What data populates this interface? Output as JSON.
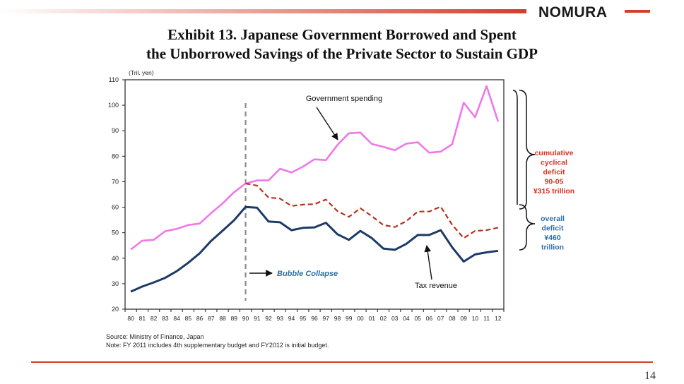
{
  "header": {
    "logo_text": "NOMURA",
    "title_line1": "Exhibit 13.  Japanese Government Borrowed and Spent",
    "title_line2": "the Unborrowed Savings of the Private Sector to Sustain GDP"
  },
  "footer": {
    "source": "Source: Ministry of Finance, Japan",
    "note": "Note: FY 2011 includes 4th supplementary budget and FY2012 is initial budget.",
    "page_number": "14"
  },
  "colors": {
    "accent": "#d33e2a",
    "government_spending": "#ef78e6",
    "tax_revenue": "#1b3a66",
    "cyclical_deficit_line": "#b5331f",
    "cyclical_deficit_text": "#d8321f",
    "overall_deficit_text": "#2e6ea8",
    "bubble_text": "#2e6ea8"
  },
  "chart_data": {
    "type": "line",
    "ylabel": "(Tril. yen)",
    "ylim": [
      20,
      110
    ],
    "yticks": [
      20,
      30,
      40,
      50,
      60,
      70,
      80,
      90,
      100,
      110
    ],
    "x": [
      "80",
      "81",
      "82",
      "83",
      "84",
      "85",
      "86",
      "87",
      "88",
      "89",
      "90",
      "91",
      "92",
      "93",
      "94",
      "95",
      "96",
      "97",
      "98",
      "99",
      "00",
      "01",
      "02",
      "03",
      "04",
      "05",
      "06",
      "07",
      "08",
      "09",
      "10",
      "11",
      "12"
    ],
    "series": [
      {
        "id": "spending",
        "values": [
          43.4,
          46.9,
          47.2,
          50.6,
          51.5,
          53.0,
          53.6,
          57.7,
          61.5,
          65.9,
          69.3,
          70.5,
          70.5,
          75.1,
          73.6,
          75.9,
          78.8,
          78.5,
          84.4,
          89.0,
          89.3,
          84.8,
          83.7,
          82.4,
          84.9,
          85.5,
          81.4,
          81.8,
          84.7,
          101.0,
          95.3,
          107.5,
          93.6
        ]
      },
      {
        "id": "cyclical",
        "values": [
          null,
          null,
          null,
          null,
          null,
          null,
          null,
          null,
          null,
          null,
          69.3,
          68.5,
          63.8,
          63.4,
          60.5,
          61.0,
          61.2,
          63.0,
          58.5,
          56.2,
          59.6,
          56.5,
          53.0,
          52.2,
          54.5,
          58.3,
          58.3,
          60.2,
          53.1,
          47.9,
          50.7,
          51.0,
          52.0
        ]
      },
      {
        "id": "tax",
        "values": [
          26.9,
          28.9,
          30.5,
          32.3,
          34.9,
          38.2,
          41.9,
          46.8,
          50.8,
          54.9,
          60.1,
          59.8,
          54.4,
          54.1,
          51.0,
          51.9,
          52.1,
          53.9,
          49.4,
          47.2,
          50.7,
          47.9,
          43.8,
          43.3,
          45.6,
          49.1,
          49.1,
          51.0,
          44.3,
          38.7,
          41.5,
          42.3,
          42.9
        ]
      }
    ],
    "annotations": {
      "government_spending": "Government spending",
      "tax_revenue": "Tax revenue",
      "bubble_collapse": "Bubble Collapse",
      "cyclical_deficit": [
        "cumulative",
        "cyclical",
        "deficit",
        "90-05",
        "¥315 trillion"
      ],
      "overall_deficit": [
        "overall",
        "deficit",
        "¥460",
        "trillion"
      ]
    },
    "bubble_collapse_year": "90",
    "grid": false,
    "legend": "none"
  }
}
